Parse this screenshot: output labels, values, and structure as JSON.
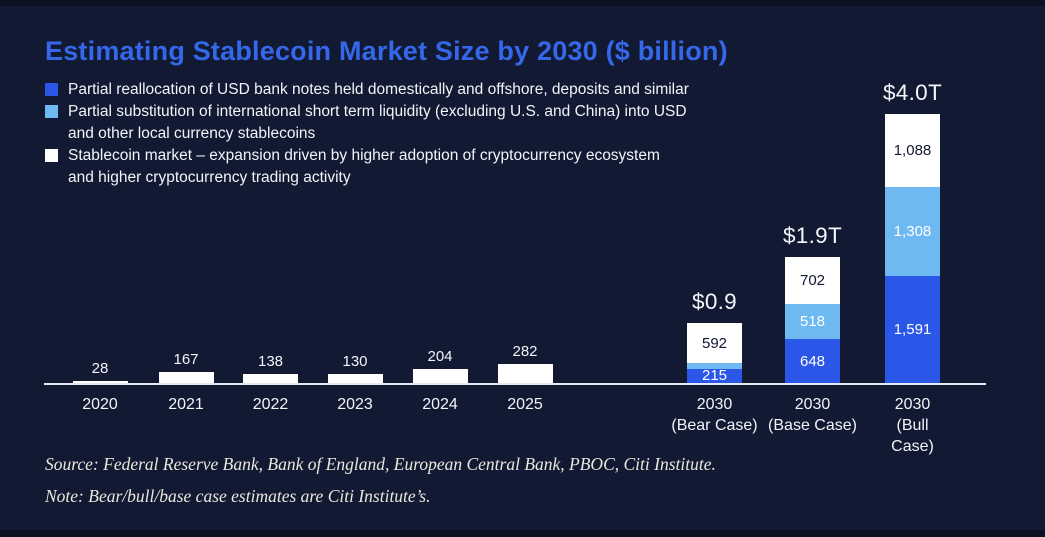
{
  "page": {
    "background_color": "#121a33",
    "accent_color": "#3567ea"
  },
  "header": {
    "title": "Estimating Stablecoin Market Size by 2030 ($ billion)",
    "title_color": "#3567ea"
  },
  "legend": {
    "items": [
      {
        "swatch_color": "#2a57e8",
        "label": "Partial reallocation of USD bank notes held domestically and offshore, deposits and similar"
      },
      {
        "swatch_color": "#6fb9f3",
        "label": "Partial substitution of international short term liquidity (excluding U.S. and China) into USD\nand other local currency stablecoins"
      },
      {
        "swatch_color": "#ffffff",
        "label": "Stablecoin market – expansion driven by higher adoption of cryptocurrency ecosystem\nand higher cryptocurrency trading activity"
      }
    ]
  },
  "chart_data": {
    "type": "bar",
    "stacked": true,
    "title": "Estimating Stablecoin Market Size by 2030 ($ billion)",
    "unit": "$ billion",
    "xlabel": "",
    "ylabel": "",
    "ylim": [
      0,
      4100
    ],
    "grid": false,
    "legend_position": "top-left",
    "axis_color": "#e5e9f2",
    "categories": [
      "2020",
      "2021",
      "2022",
      "2023",
      "2024",
      "2025",
      "2030\n(Bear Case)",
      "2030\n(Base Case)",
      "2030\n(Bull Case)"
    ],
    "series": [
      {
        "name": "Partial reallocation of USD bank notes held domestically and offshore, deposits and similar",
        "key": "reallocation",
        "color": "#2a57e8",
        "values": [
          0,
          0,
          0,
          0,
          0,
          0,
          215,
          648,
          1591
        ]
      },
      {
        "name": "Partial substitution of international short term liquidity (excluding U.S. and China) into USD and other local currency stablecoins",
        "key": "substitution",
        "color": "#6fb9f3",
        "values": [
          0,
          0,
          0,
          0,
          0,
          0,
          76,
          518,
          1308
        ]
      },
      {
        "name": "Stablecoin market – expansion driven by higher adoption of cryptocurrency ecosystem and higher cryptocurrency trading activity",
        "key": "market",
        "color": "#ffffff",
        "values": [
          28,
          167,
          138,
          130,
          204,
          282,
          592,
          702,
          1088
        ]
      }
    ],
    "total_labels": [
      "",
      "",
      "",
      "",
      "",
      "",
      "$0.9",
      "$1.9T",
      "$4.0T"
    ]
  },
  "footer": {
    "source": "Source: Federal Reserve Bank, Bank of England, European Central Bank, PBOC, Citi Institute.",
    "note": "Note: Bear/bull/base case estimates are Citi Institute’s."
  }
}
